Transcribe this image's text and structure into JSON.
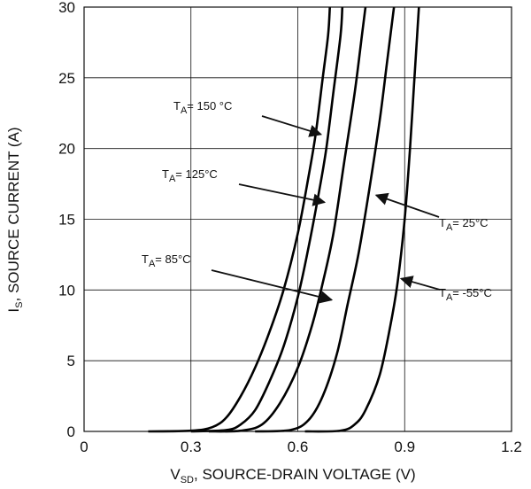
{
  "chart_data": {
    "type": "line",
    "xlabel": {
      "main": "V",
      "sub": "SD",
      "rest": ", SOURCE-DRAIN VOLTAGE (V)"
    },
    "ylabel": {
      "main": "I",
      "sub": "S",
      "rest": ", SOURCE CURRENT (A)"
    },
    "xlim": [
      0,
      1.2
    ],
    "ylim": [
      0,
      30
    ],
    "xticks": [
      "0",
      "0.3",
      "0.6",
      "0.9",
      "1.2"
    ],
    "yticks": [
      "0",
      "5",
      "10",
      "15",
      "20",
      "25",
      "30"
    ],
    "grid": true,
    "series": [
      {
        "name": "TA= 150 °C",
        "points": [
          [
            0.18,
            0
          ],
          [
            0.3,
            0.05
          ],
          [
            0.36,
            0.3
          ],
          [
            0.4,
            1
          ],
          [
            0.44,
            2.5
          ],
          [
            0.48,
            4.5
          ],
          [
            0.52,
            7
          ],
          [
            0.56,
            10
          ],
          [
            0.6,
            14
          ],
          [
            0.63,
            18
          ],
          [
            0.65,
            21
          ],
          [
            0.67,
            25
          ],
          [
            0.685,
            28
          ],
          [
            0.69,
            30
          ]
        ]
      },
      {
        "name": "TA= 125°C",
        "points": [
          [
            0.3,
            0
          ],
          [
            0.4,
            0.1
          ],
          [
            0.44,
            0.5
          ],
          [
            0.48,
            1.5
          ],
          [
            0.52,
            3.5
          ],
          [
            0.56,
            6
          ],
          [
            0.6,
            9.5
          ],
          [
            0.63,
            13
          ],
          [
            0.66,
            17
          ],
          [
            0.68,
            20
          ],
          [
            0.7,
            24
          ],
          [
            0.72,
            28
          ],
          [
            0.725,
            30
          ]
        ]
      },
      {
        "name": "TA= 85°C",
        "points": [
          [
            0.35,
            0
          ],
          [
            0.44,
            0.05
          ],
          [
            0.5,
            0.5
          ],
          [
            0.55,
            2
          ],
          [
            0.6,
            4.5
          ],
          [
            0.64,
            7.5
          ],
          [
            0.67,
            10.5
          ],
          [
            0.7,
            14
          ],
          [
            0.73,
            19
          ],
          [
            0.76,
            24
          ],
          [
            0.78,
            28
          ],
          [
            0.79,
            30
          ]
        ]
      },
      {
        "name": "TA= 25°C",
        "points": [
          [
            0.48,
            0
          ],
          [
            0.58,
            0.1
          ],
          [
            0.63,
            0.8
          ],
          [
            0.67,
            2.5
          ],
          [
            0.71,
            5.5
          ],
          [
            0.74,
            9
          ],
          [
            0.77,
            12.5
          ],
          [
            0.8,
            17
          ],
          [
            0.83,
            22
          ],
          [
            0.85,
            26
          ],
          [
            0.86,
            28
          ],
          [
            0.87,
            30
          ]
        ]
      },
      {
        "name": "TA= -55°C",
        "points": [
          [
            0.62,
            0
          ],
          [
            0.72,
            0.05
          ],
          [
            0.76,
            0.5
          ],
          [
            0.79,
            1.5
          ],
          [
            0.83,
            4
          ],
          [
            0.86,
            7.5
          ],
          [
            0.88,
            10.5
          ],
          [
            0.9,
            15
          ],
          [
            0.915,
            20
          ],
          [
            0.925,
            24
          ],
          [
            0.935,
            28
          ],
          [
            0.94,
            30
          ]
        ]
      }
    ],
    "annotations": [
      {
        "text": "T",
        "sub": "A",
        "rest": "= 150 °C",
        "arrow_to": [
          0.665,
          21
        ]
      },
      {
        "text": "T",
        "sub": "A",
        "rest": "= 125°C",
        "arrow_to": [
          0.675,
          16.2
        ]
      },
      {
        "text": "T",
        "sub": "A",
        "rest": "= 85°C",
        "arrow_to": [
          0.695,
          9.3
        ]
      },
      {
        "text": "T",
        "sub": "A",
        "rest": "= 25°C",
        "arrow_to": [
          0.82,
          16.7
        ]
      },
      {
        "text": "T",
        "sub": "A",
        "rest": "= -55°C",
        "arrow_to": [
          0.89,
          10.8
        ]
      }
    ]
  }
}
